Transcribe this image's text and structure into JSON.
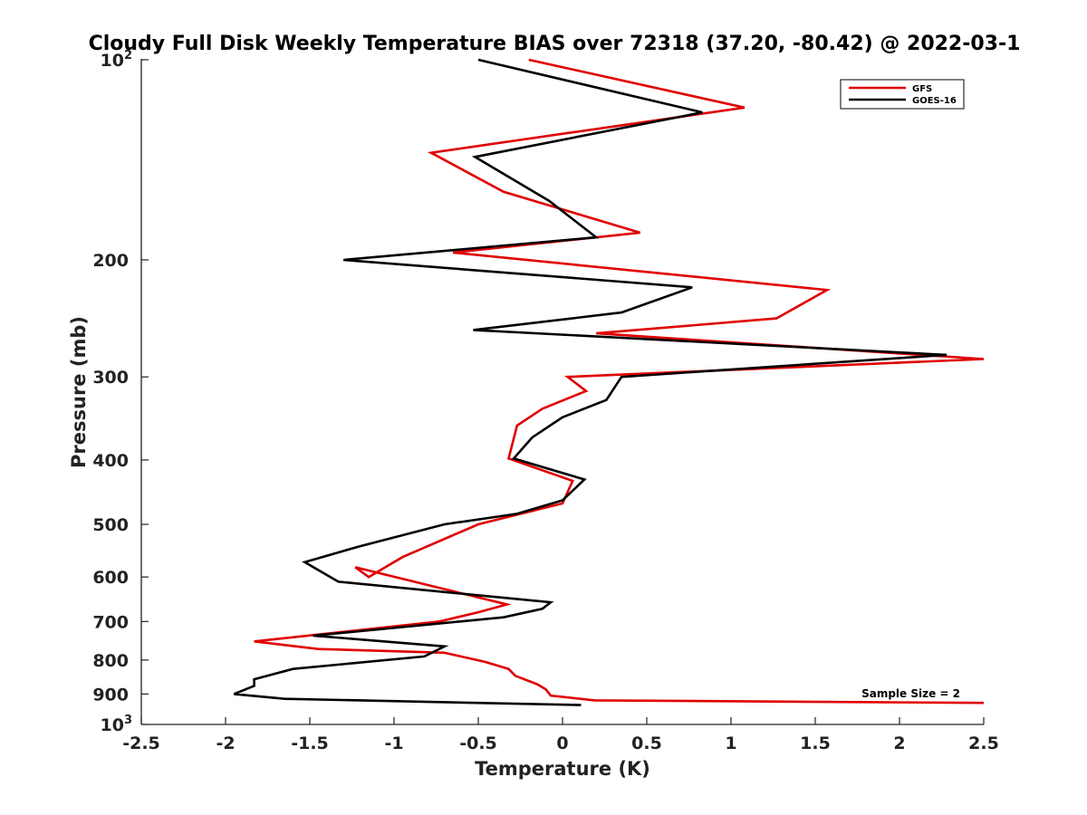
{
  "chart_data": {
    "type": "line",
    "title": "Cloudy Full Disk Weekly Temperature BIAS over 72318 (37.20, -80.42) @ 2022-03-1",
    "xlabel": "Temperature (K)",
    "ylabel": "Pressure (mb)",
    "xlim": [
      -2.5,
      2.5
    ],
    "ylim": [
      100,
      1000
    ],
    "y_scale": "log",
    "y_reversed": true,
    "grid": false,
    "legend_position": "top-right",
    "x_ticks": [
      -2.5,
      -2,
      -1.5,
      -1,
      -0.5,
      0,
      0.5,
      1,
      1.5,
      2,
      2.5
    ],
    "x_tick_labels": [
      "-2.5",
      "-2",
      "-1.5",
      "-1",
      "-0.5",
      "0",
      "0.5",
      "1",
      "1.5",
      "2",
      "2.5"
    ],
    "y_ticks": [
      200,
      300,
      400,
      500,
      600,
      700,
      800,
      900
    ],
    "y_tick_labels": [
      "200",
      "300",
      "400",
      "500",
      "600",
      "700",
      "800",
      "900"
    ],
    "y_tick_base": "10",
    "y_tick_exp_top": "2",
    "y_tick_exp_bottom": "3",
    "annotation": "Sample Size = 2",
    "series": [
      {
        "name": "GFS",
        "color": "#e00000",
        "x": [
          -0.2,
          1.08,
          -0.78,
          -0.35,
          0.46,
          -0.65,
          1.57,
          1.27,
          0.2,
          2.5,
          0.03,
          0.14,
          -0.12,
          -0.27,
          -0.32,
          0.06,
          0.0,
          -0.5,
          -0.95,
          -1.15,
          -1.23,
          -0.33,
          -0.5,
          -0.73,
          -1.83,
          -1.45,
          -0.7,
          -0.46,
          -0.32,
          -0.28,
          -0.15,
          -0.1,
          -0.07,
          0.19,
          2.5
        ],
        "y": [
          100,
          118,
          138,
          158,
          182,
          195,
          222,
          245,
          258,
          282,
          300,
          315,
          335,
          355,
          398,
          430,
          465,
          500,
          560,
          600,
          580,
          660,
          678,
          700,
          750,
          770,
          780,
          805,
          825,
          845,
          870,
          885,
          905,
          920,
          928
        ]
      },
      {
        "name": "GOES-16",
        "color": "#000000",
        "x": [
          -0.5,
          0.83,
          -0.52,
          -0.08,
          0.2,
          -1.3,
          0.77,
          0.35,
          -0.53,
          2.28,
          0.35,
          0.26,
          0.0,
          -0.18,
          -0.29,
          0.13,
          0.0,
          -0.27,
          -0.7,
          -1.21,
          -1.53,
          -1.33,
          -0.07,
          -0.12,
          -0.35,
          -1.48,
          -0.7,
          -0.82,
          -1.6,
          -1.83,
          -1.83,
          -1.95,
          -1.65,
          0.11
        ],
        "y": [
          100,
          120,
          140,
          163,
          185,
          200,
          220,
          240,
          255,
          278,
          300,
          325,
          345,
          370,
          398,
          428,
          460,
          482,
          500,
          540,
          570,
          610,
          655,
          670,
          690,
          735,
          763,
          790,
          825,
          855,
          875,
          900,
          915,
          935
        ]
      }
    ]
  }
}
